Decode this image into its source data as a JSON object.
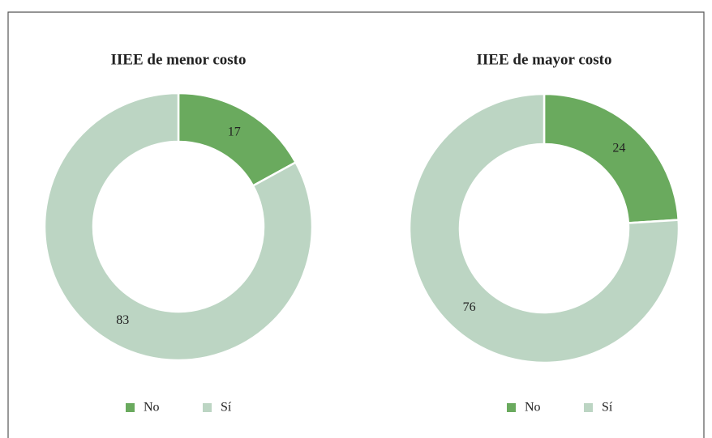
{
  "chart_data": [
    {
      "type": "donut",
      "title": "IIEE de menor costo",
      "categories": [
        "No",
        "Sí"
      ],
      "values": [
        17,
        83
      ],
      "colors": [
        "#6aaa5e",
        "#bcd5c3"
      ]
    },
    {
      "type": "donut",
      "title": "IIEE de mayor costo",
      "categories": [
        "No",
        "Sí"
      ],
      "values": [
        24,
        76
      ],
      "colors": [
        "#6aaa5e",
        "#bcd5c3"
      ]
    }
  ]
}
